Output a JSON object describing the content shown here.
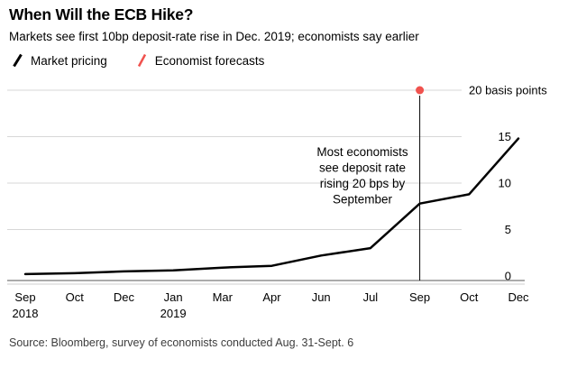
{
  "header": {
    "title": "When Will the ECB Hike?",
    "subtitle": "Markets see first 10bp deposit-rate rise in Dec. 2019; economists say earlier"
  },
  "legend": [
    {
      "label": "Market pricing",
      "color": "#000000",
      "icon": "black-slash-icon"
    },
    {
      "label": "Economist forecasts",
      "color": "#f0524e",
      "icon": "red-slash-icon"
    }
  ],
  "source": "Source: Bloomberg, survey of economists conducted Aug. 31-Sept. 6",
  "chart_data": {
    "type": "line",
    "title": "When Will the ECB Hike?",
    "subtitle": "Markets see first 10bp deposit-rate rise in Dec. 2019; economists say earlier",
    "x_tick_labels": [
      "Sep",
      "Oct",
      "Dec",
      "Jan",
      "Mar",
      "Apr",
      "Jun",
      "Jul",
      "Sep",
      "Oct",
      "Dec"
    ],
    "x_year_labels": [
      {
        "text": "2018",
        "tick_index": 0
      },
      {
        "text": "2019",
        "tick_index": 3
      }
    ],
    "series": [
      {
        "name": "Market pricing",
        "color": "#000000",
        "values": [
          0.2,
          0.3,
          0.5,
          0.6,
          0.9,
          1.1,
          2.2,
          3.0,
          7.8,
          8.8,
          14.8
        ]
      }
    ],
    "ylim": [
      0,
      20
    ],
    "ylabel": "basis points",
    "grid": "horizontal",
    "legend_position": "top-left",
    "y_ticks": [
      {
        "value": 0,
        "label": "0"
      },
      {
        "value": 5,
        "label": "5"
      },
      {
        "value": 10,
        "label": "10"
      },
      {
        "value": 15,
        "label": "15"
      },
      {
        "value": 20,
        "label": "20 basis points"
      }
    ],
    "marker": {
      "name": "Economist forecasts",
      "tick_index": 8,
      "value": 20,
      "color": "#f0524e"
    },
    "annotation": {
      "lines": [
        "Most economists",
        "see deposit rate",
        "rising 20 bps by",
        "September"
      ]
    }
  }
}
